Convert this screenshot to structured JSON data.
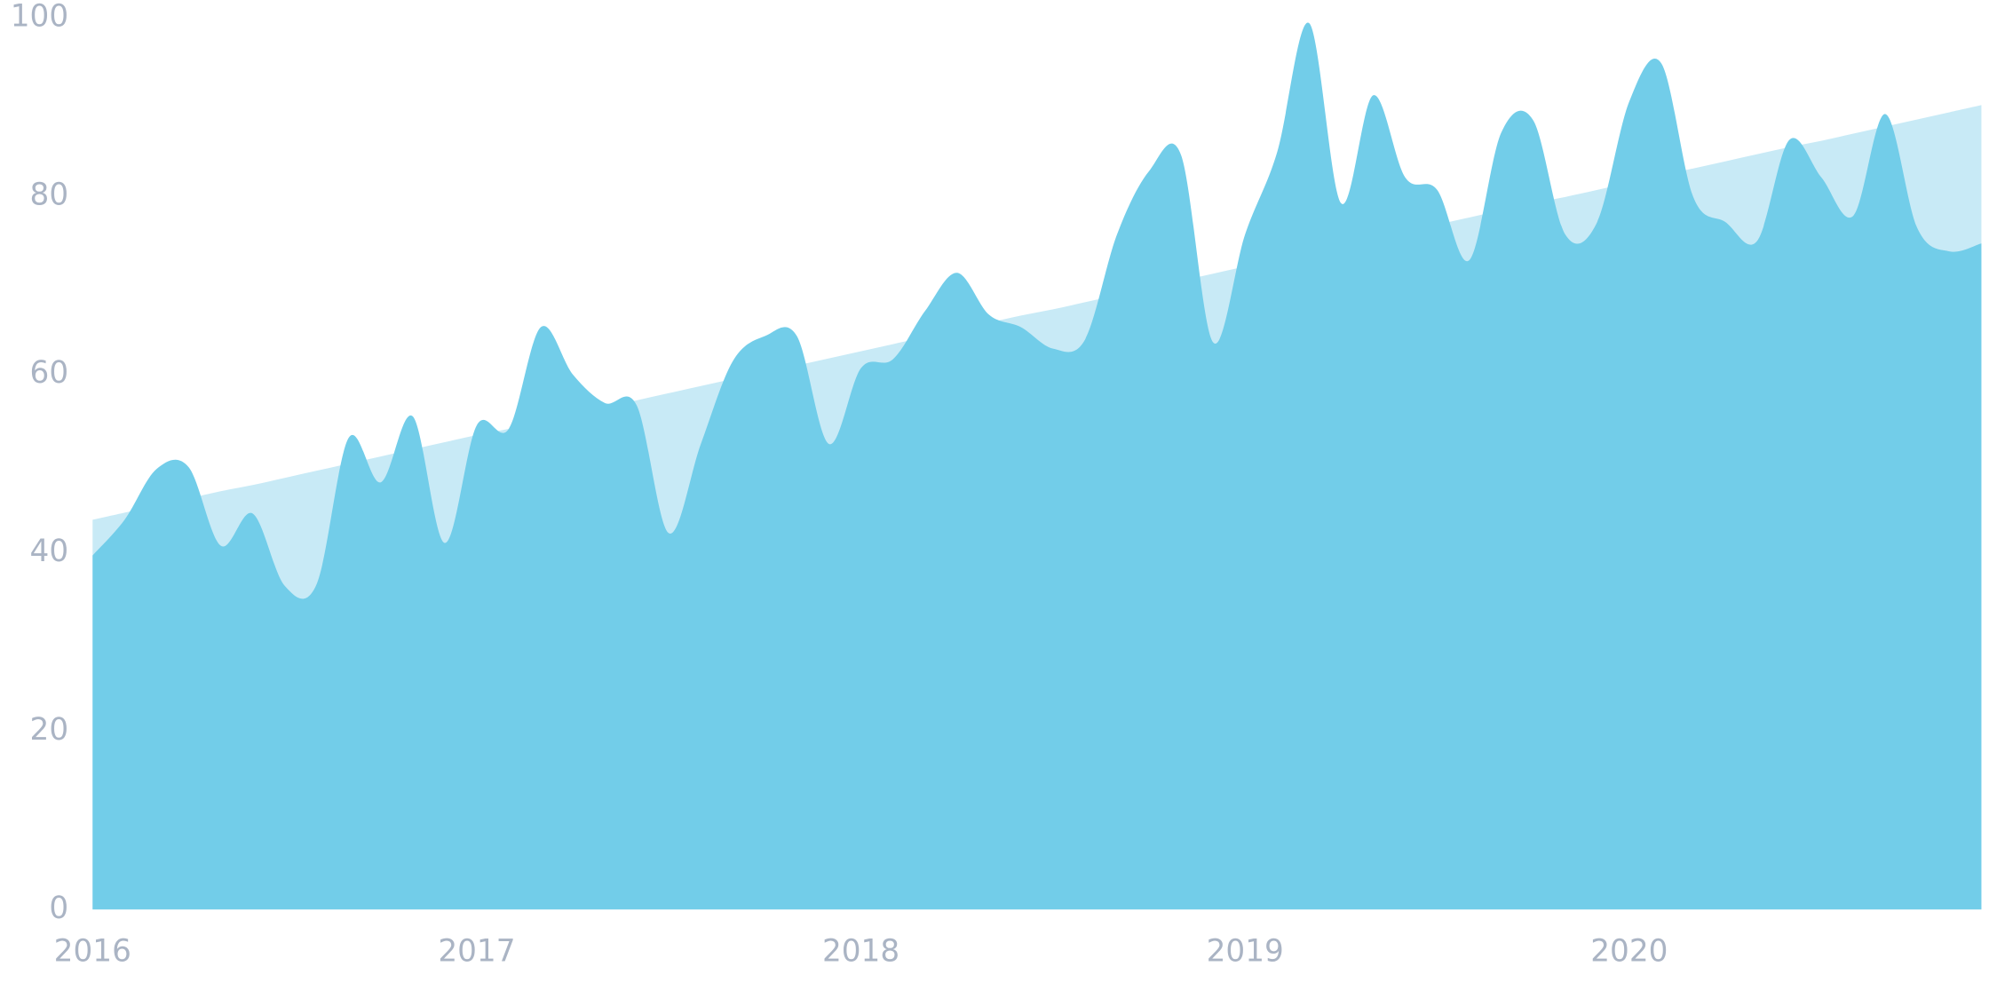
{
  "chart_data": {
    "type": "area",
    "categories": [
      "2016",
      null,
      null,
      null,
      null,
      null,
      null,
      null,
      null,
      null,
      null,
      null,
      "2017",
      null,
      null,
      null,
      null,
      null,
      null,
      null,
      null,
      null,
      null,
      null,
      "2018",
      null,
      null,
      null,
      null,
      null,
      null,
      null,
      null,
      null,
      null,
      null,
      "2019",
      null,
      null,
      null,
      null,
      null,
      null,
      null,
      null,
      null,
      null,
      null,
      "2020",
      null,
      null,
      null,
      null,
      null,
      null,
      null,
      null,
      null,
      null,
      null
    ],
    "series": [
      {
        "color": "#c8eaf6",
        "values": [
          43.7,
          44.5,
          45.3,
          46.1,
          46.9,
          47.6,
          48.4,
          49.2,
          50.0,
          50.8,
          51.6,
          52.4,
          53.2,
          53.9,
          54.7,
          55.5,
          56.3,
          57.1,
          57.9,
          58.7,
          59.5,
          60.2,
          61.0,
          61.8,
          62.6,
          63.4,
          64.2,
          65.0,
          65.8,
          66.6,
          67.3,
          68.1,
          68.9,
          69.7,
          70.5,
          71.3,
          72.1,
          72.9,
          73.6,
          74.4,
          75.2,
          76.0,
          76.8,
          77.6,
          78.4,
          79.2,
          79.9,
          80.7,
          81.5,
          82.3,
          83.1,
          83.9,
          84.7,
          85.5,
          86.2,
          87.0,
          87.8,
          88.6,
          89.4,
          90.2
        ]
      },
      {
        "color": "#72cde9",
        "values": [
          39.7,
          43.7,
          49.4,
          49.6,
          40.8,
          44.4,
          36.3,
          36.5,
          52.9,
          47.9,
          55.3,
          41.1,
          54.3,
          53.9,
          65.3,
          60.0,
          56.8,
          56.5,
          42.2,
          52.2,
          61.5,
          64.3,
          64.3,
          52.2,
          60.7,
          61.7,
          67.1,
          71.4,
          66.7,
          65.3,
          62.9,
          63.9,
          75.7,
          82.8,
          84.6,
          63.6,
          75.7,
          84.9,
          99.4,
          79.2,
          91.3,
          82.1,
          80.7,
          72.8,
          87.1,
          88.5,
          75.7,
          77.1,
          90.6,
          94.9,
          79.9,
          77.1,
          75.0,
          86.3,
          82.1,
          77.8,
          89.2,
          76.4,
          73.8,
          74.7
        ]
      }
    ],
    "ylim": [
      0,
      100
    ],
    "yticks": [
      0,
      20,
      40,
      60,
      80,
      100
    ],
    "grid": false
  }
}
